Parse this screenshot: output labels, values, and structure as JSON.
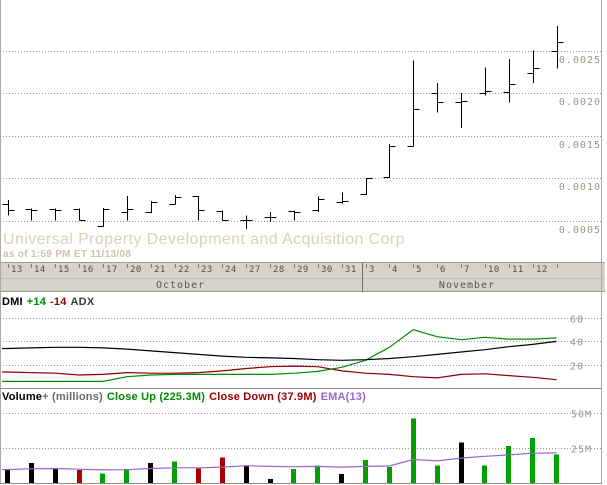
{
  "colors": {
    "bar_black": "#000000",
    "vol_green": "#00A000",
    "vol_red": "#AA0000",
    "dmi_green": "#008A00",
    "dmi_red": "#8B0000",
    "adx_black": "#000000",
    "ema_purple": "#9966CC",
    "grid": "#999999",
    "axis_text": "#96968C",
    "title_text": "#D9D1BF",
    "strip_bg": "#D6D3C9",
    "strip_border": "#9C9C93"
  },
  "dmi_header": {
    "dmi": "DMI",
    "plus": "+14",
    "minus": "-14",
    "adx": "ADX"
  },
  "volume_header": {
    "volume": "Volume",
    "plus_millions": "+ (millions)",
    "close_up": "Close Up (225.3M)",
    "close_down": "Close Down (37.9M)",
    "ema": "EMA(13)"
  },
  "chart_data": [
    {
      "type": "ohlc",
      "panel": "price",
      "title": "Universal Property Development and Acquisition Corp",
      "as_of": "as of 1:59 PM ET 11/13/08",
      "x_dates": [
        "13",
        "14",
        "15",
        "16",
        "17",
        "20",
        "21",
        "22",
        "23",
        "24",
        "27",
        "28",
        "29",
        "30",
        "31",
        "3",
        "4",
        "5",
        "6",
        "7",
        "10",
        "11",
        "12",
        ""
      ],
      "x_months": [
        {
          "label": "October",
          "start_index": 0,
          "end_index": 14
        },
        {
          "label": "November",
          "start_index": 15,
          "end_index": 23
        }
      ],
      "open": [
        0.0007,
        0.00063,
        0.00063,
        0.00063,
        0.00044,
        0.0006,
        0.0006,
        0.0007,
        0.00079,
        0.00061,
        0.00051,
        0.00054,
        0.00061,
        0.00062,
        0.00072,
        0.00081,
        0.00101,
        0.00138,
        0.002,
        0.0019,
        0.002,
        0.00201,
        0.00223,
        0.0025
      ],
      "high": [
        0.00074,
        0.00064,
        0.00064,
        0.00064,
        0.00065,
        0.00079,
        0.00073,
        0.0008,
        0.00079,
        0.00062,
        0.00056,
        0.0006,
        0.00062,
        0.00078,
        0.00083,
        0.001,
        0.0014,
        0.00238,
        0.00212,
        0.002,
        0.0023,
        0.0024,
        0.0025,
        0.00279
      ],
      "low": [
        0.00056,
        0.0005,
        0.0005,
        0.0005,
        0.00043,
        0.0005,
        0.00059,
        0.00069,
        0.0005,
        0.0005,
        0.0004,
        0.00048,
        0.0005,
        0.0006,
        0.0007,
        0.0008,
        0.001,
        0.00137,
        0.00177,
        0.00159,
        0.00197,
        0.00189,
        0.00212,
        0.00229
      ],
      "close": [
        0.00062,
        0.00062,
        0.00062,
        0.00051,
        0.00063,
        0.00064,
        0.00072,
        0.00078,
        0.00062,
        0.00051,
        0.00051,
        0.00054,
        0.0006,
        0.00075,
        0.00073,
        0.001,
        0.00138,
        0.00181,
        0.00189,
        0.00191,
        0.00202,
        0.00211,
        0.0023,
        0.0026
      ],
      "y_ticks": [
        0.0025,
        0.002,
        0.0015,
        0.001,
        0.0005
      ],
      "y_tick_labels": [
        "0.0025",
        "0.0020",
        "0.0015",
        "0.0010",
        "0.0005"
      ],
      "ylim": [
        0.00025,
        0.00295
      ],
      "grid": "dotted-horizontal"
    },
    {
      "type": "line",
      "panel": "dmi",
      "series": [
        {
          "name": "-DI(14)",
          "color_key": "dmi_red",
          "values": [
            14,
            13.5,
            13,
            11.5,
            12,
            13.5,
            13,
            13,
            13.5,
            15,
            17,
            18.5,
            19,
            18.5,
            15,
            13,
            12,
            10,
            9,
            12,
            12.5,
            11,
            9.5,
            7.5
          ]
        },
        {
          "name": "+DI(14)",
          "color_key": "dmi_green",
          "values": [
            6,
            6,
            6,
            6,
            6,
            10,
            11.5,
            12,
            12,
            12,
            12,
            12,
            13,
            14.5,
            18,
            24,
            35,
            50,
            44,
            41.5,
            43.5,
            42,
            42,
            43
          ]
        },
        {
          "name": "ADX",
          "color_key": "adx_black",
          "values": [
            34,
            34.5,
            35,
            35,
            34.5,
            33.5,
            32,
            30.5,
            29,
            27.5,
            26.5,
            26,
            25.5,
            24.5,
            24,
            24.5,
            25.5,
            27,
            29,
            31,
            33,
            35.5,
            37.5,
            40
          ]
        }
      ],
      "y_ticks": [
        60,
        40,
        20
      ],
      "y_tick_labels": [
        "60",
        "40",
        "20"
      ],
      "ylim": [
        0,
        80
      ]
    },
    {
      "type": "bar",
      "panel": "volume",
      "unit": "millions",
      "values": [
        9,
        14,
        10,
        9,
        6.5,
        9.5,
        14,
        15,
        10,
        18,
        12,
        2.5,
        9.5,
        12,
        6,
        16,
        11,
        46,
        12,
        28.5,
        12,
        26,
        32,
        20
      ],
      "bar_colors": [
        "black",
        "black",
        "black",
        "red",
        "green",
        "green",
        "black",
        "green",
        "red",
        "red",
        "black",
        "black",
        "green",
        "green",
        "black",
        "green",
        "green",
        "green",
        "green",
        "black",
        "green",
        "green",
        "green",
        "green"
      ],
      "ema13": [
        9.3,
        9.8,
        10,
        9.5,
        9,
        9.2,
        10,
        10.5,
        10.5,
        11,
        12,
        11.5,
        11.3,
        11.5,
        11,
        11.5,
        11.8,
        16.5,
        15.5,
        17.5,
        18.8,
        19.8,
        21,
        21.2
      ],
      "y_ticks": [
        50,
        25
      ],
      "y_tick_labels": [
        "50M",
        "25M"
      ],
      "ylim": [
        0,
        55
      ]
    }
  ]
}
